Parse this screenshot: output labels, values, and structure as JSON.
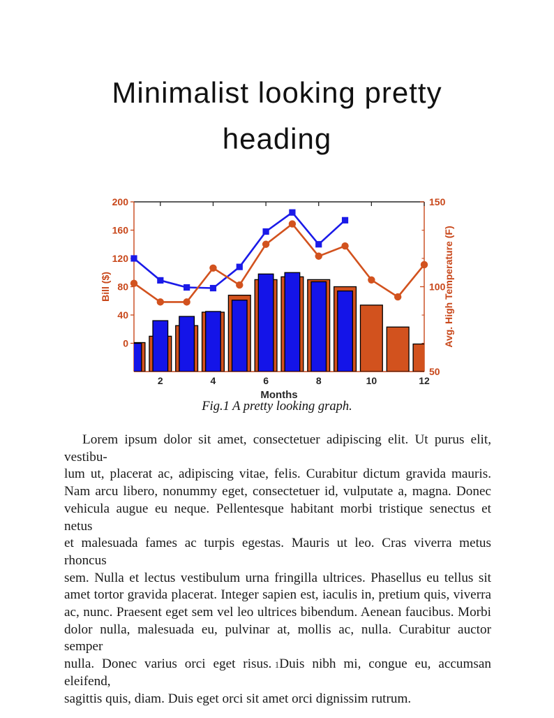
{
  "header": {
    "line1": "Minimalist looking pretty",
    "line2": "heading"
  },
  "figure": {
    "caption": "Fig.1 A pretty looking graph."
  },
  "chart_data": {
    "type": "bar",
    "subtype": "combo-bar-line-dual-axis",
    "title": "",
    "x": [
      1,
      2,
      3,
      4,
      5,
      6,
      7,
      8,
      9,
      10,
      11,
      12
    ],
    "xlabel": "Months",
    "x_ticks": [
      2,
      4,
      6,
      8,
      10,
      12
    ],
    "x_tick_color": "#262626",
    "top_spine_color": "#262626",
    "grid": "off",
    "legend": "none",
    "left_axis": {
      "label": "Bill ($)",
      "ticks": [
        0,
        40,
        80,
        120,
        160,
        200
      ],
      "range": [
        -40,
        200
      ],
      "color": "#C8471A"
    },
    "right_axis": {
      "label": "Avg. High Temperature (F)",
      "ticks": [
        50,
        100,
        150
      ],
      "minor_ticks": [
        66.7,
        83.3,
        116.7,
        133.3
      ],
      "range": [
        50,
        150
      ],
      "color": "#C8471A"
    },
    "series": [
      {
        "name": "bill-bars-orange",
        "type": "bar",
        "axis": "left",
        "color": "#D2521E",
        "bar_width_months": 0.84,
        "values": [
          1,
          10,
          25,
          44,
          68,
          90,
          94,
          90,
          80,
          54,
          23,
          -1
        ]
      },
      {
        "name": "bill-bars-blue",
        "type": "bar",
        "axis": "left",
        "color": "#1414E8",
        "bar_width_months": 0.57,
        "values": [
          0,
          32,
          38,
          45,
          61,
          98,
          100,
          87,
          74,
          null,
          null,
          null
        ]
      },
      {
        "name": "bill-line-blue",
        "type": "line",
        "axis": "left",
        "marker": "square",
        "color": "#1A1AE8",
        "values": [
          120,
          89,
          79,
          78,
          108,
          158,
          185,
          140,
          174,
          null,
          null,
          null
        ]
      },
      {
        "name": "avg-high-temp-line-orange",
        "type": "line",
        "axis": "right",
        "marker": "circle",
        "color": "#D2521E",
        "values": [
          102,
          91,
          91,
          111,
          101,
          125,
          137,
          118,
          124,
          104,
          94,
          113
        ]
      }
    ]
  },
  "body": {
    "lines": [
      "Lorem ipsum dolor sit amet, consectetuer adipiscing elit.  Ut purus elit, vestibu-",
      "lum ut, placerat ac, adipiscing vitae, felis.  Curabitur dictum gravida mauris.",
      "Nam arcu libero, nonummy eget, consectetuer id, vulputate a, magna.  Donec",
      "vehicula augue eu neque. Pellentesque habitant morbi tristique senectus et netus",
      "et malesuada fames ac turpis egestas. Mauris ut leo. Cras viverra metus rhoncus",
      "sem.  Nulla et lectus vestibulum urna fringilla ultrices.  Phasellus eu tellus sit",
      "amet tortor gravida placerat. Integer sapien est, iaculis in, pretium quis, viverra",
      "ac, nunc. Praesent eget sem vel leo ultrices bibendum. Aenean faucibus. Morbi",
      "dolor nulla, malesuada eu, pulvinar at, mollis ac, nulla. Curabitur auctor semper",
      "nulla. Donec varius orci eget risus. Duis nibh mi, congue eu, accumsan eleifend,",
      "sagittis quis, diam. Duis eget orci sit amet orci dignissim rutrum."
    ]
  },
  "footer": {
    "page_number": "1"
  }
}
